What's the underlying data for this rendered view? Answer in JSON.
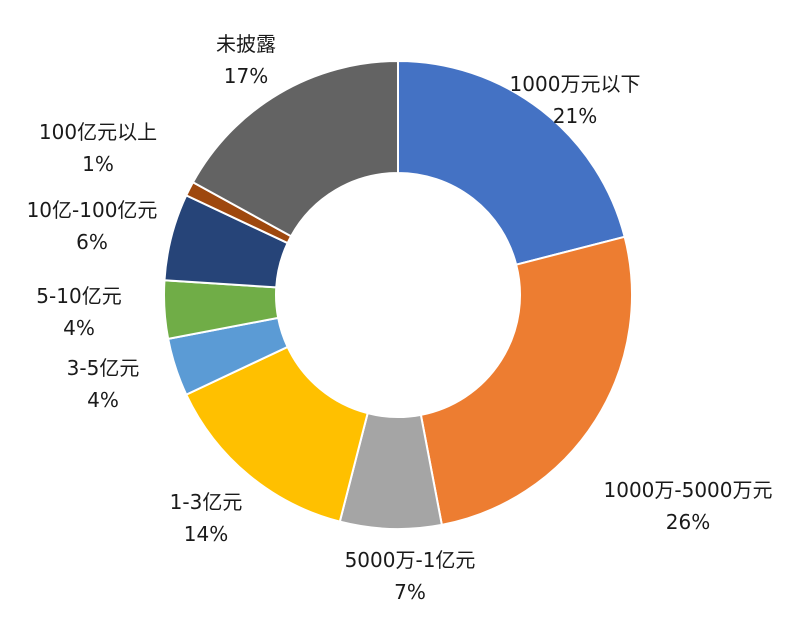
{
  "chart_data": {
    "type": "pie",
    "variant": "donut",
    "title": "",
    "categories": [
      "1000万元以下",
      "1000万-5000万元",
      "5000万-1亿元",
      "1-3亿元",
      "3-5亿元",
      "5-10亿元",
      "10亿-100亿元",
      "100亿元以上",
      "未披露"
    ],
    "values": [
      21,
      26,
      7,
      14,
      4,
      4,
      6,
      1,
      17
    ],
    "value_labels": [
      "21%",
      "26%",
      "7%",
      "14%",
      "4%",
      "4%",
      "6%",
      "1%",
      "17%"
    ],
    "colors": [
      "#4472C4",
      "#ED7D31",
      "#A5A5A5",
      "#FFC000",
      "#5B9BD5",
      "#70AD47",
      "#264478",
      "#9E480E",
      "#636363"
    ],
    "legend": "none",
    "start": "12 o'clock, clockwise"
  }
}
